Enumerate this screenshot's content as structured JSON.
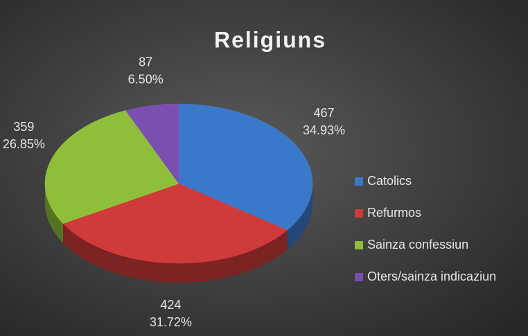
{
  "chart_data": {
    "type": "pie",
    "title": "Religiuns",
    "categories": [
      "Catolics",
      "Refurmos",
      "Sainza confessiun",
      "Oters/sainza indicaziun"
    ],
    "values": [
      467,
      424,
      359,
      87
    ],
    "percent_labels": [
      "34.93%",
      "31.72%",
      "26.85%",
      "6.50%"
    ],
    "colors": [
      "#3a78c9",
      "#cf3a3a",
      "#8fbf3a",
      "#7b4fb0"
    ],
    "legend": "right"
  }
}
